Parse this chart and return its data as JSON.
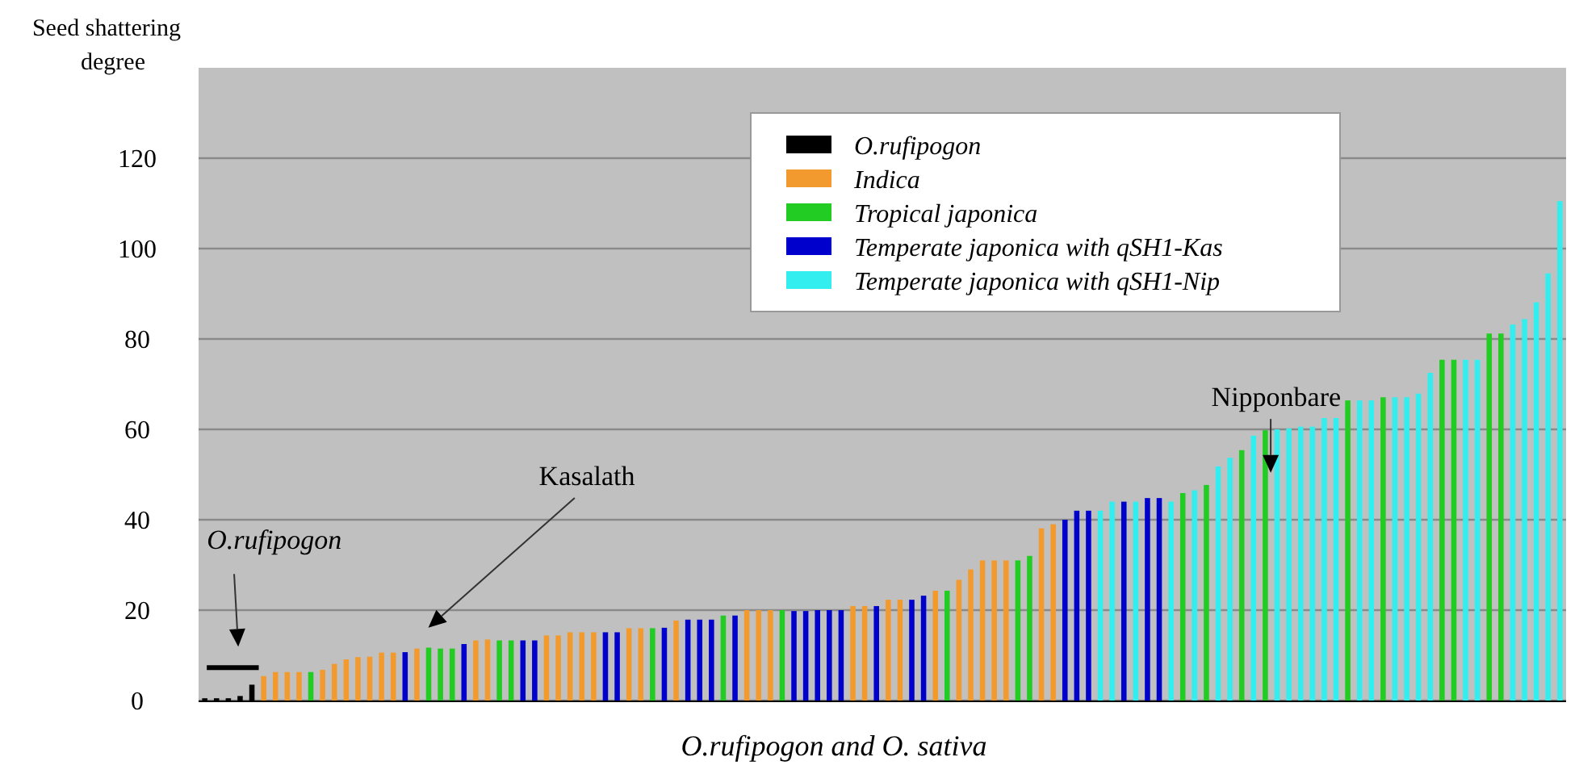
{
  "chart_data": {
    "type": "bar",
    "ylabel": "Seed shattering degree",
    "xlabel": "O.rufipogon and O. sativa",
    "annotations": [
      "O.rufipogon",
      "Kasalath",
      "Nipponbare"
    ],
    "categories": [
      null,
      null,
      null,
      null,
      null,
      null,
      null,
      null,
      null,
      null,
      null,
      null,
      null,
      null,
      null,
      null,
      null,
      null,
      null,
      null,
      null,
      null,
      null,
      null,
      null,
      null,
      null,
      null,
      null,
      null,
      null,
      null,
      null,
      null,
      null,
      null,
      null,
      null,
      null,
      null,
      null,
      null,
      null,
      null,
      null,
      null,
      null,
      null,
      null,
      null,
      null,
      null,
      null,
      null,
      null,
      null,
      null,
      null,
      null,
      null,
      null,
      null,
      null,
      null,
      null,
      null,
      null,
      null,
      null,
      null,
      null,
      null,
      null,
      null,
      null,
      null,
      null,
      null,
      null,
      null,
      null,
      null,
      null,
      null,
      null,
      null,
      null,
      null,
      null,
      null,
      null,
      null,
      null,
      null,
      null,
      null,
      null,
      null,
      null,
      null,
      null,
      null,
      null,
      null,
      null,
      null,
      null,
      null,
      null,
      null,
      null,
      null,
      null,
      null,
      null,
      null
    ],
    "series": [
      {
        "name": "O.rufipogon",
        "color": "#000000",
        "values": [
          0.5,
          0.5,
          0.5,
          1,
          3.5,
          null,
          null,
          null,
          null,
          null,
          null,
          null,
          null,
          null,
          null,
          null,
          null,
          null,
          null,
          null,
          null,
          null,
          null,
          null,
          null,
          null,
          null,
          null,
          null,
          null,
          null,
          null,
          null,
          null,
          null,
          null,
          null,
          null,
          null,
          null,
          null,
          null,
          null,
          null,
          null,
          null,
          null,
          null,
          null,
          null,
          null,
          null,
          null,
          null,
          null,
          null,
          null,
          null,
          null,
          null,
          null,
          null,
          null,
          null,
          null,
          null,
          null,
          null,
          null,
          null,
          null,
          null,
          null,
          null,
          null,
          null,
          null,
          null,
          null,
          null,
          null,
          null,
          null,
          null,
          null,
          null,
          null,
          null,
          null,
          null,
          null,
          null,
          null,
          null,
          null,
          null,
          null,
          null,
          null,
          null,
          null,
          null,
          null,
          null,
          null,
          null,
          null,
          null,
          null,
          null,
          null,
          null,
          null,
          null,
          null,
          null
        ]
      },
      {
        "name": "Indica",
        "color": "#f39a2e",
        "values": [
          null,
          null,
          null,
          null,
          null,
          5.4,
          6.3,
          6.3,
          6.3,
          null,
          6.8,
          8.1,
          9.1,
          9.6,
          9.7,
          10.6,
          10.6,
          null,
          11.5,
          null,
          null,
          null,
          null,
          13.3,
          13.5,
          null,
          null,
          null,
          null,
          14.4,
          14.4,
          15.1,
          15.1,
          15.1,
          null,
          null,
          16,
          16,
          null,
          null,
          17.7,
          null,
          null,
          null,
          null,
          null,
          20,
          20,
          20,
          null,
          null,
          null,
          null,
          null,
          null,
          20.9,
          20.9,
          null,
          22.3,
          22.3,
          null,
          null,
          24.3,
          null,
          26.7,
          29,
          31,
          31,
          31,
          null,
          null,
          38.1,
          39,
          null,
          null,
          null,
          null,
          null,
          null,
          null,
          null,
          null,
          null,
          null,
          null,
          null,
          null,
          null,
          null,
          null,
          null,
          null,
          null,
          null,
          null,
          null,
          null,
          null,
          null,
          null,
          null,
          null,
          null,
          null,
          null,
          null,
          null,
          null,
          null,
          null,
          null,
          null,
          null,
          null,
          null,
          null
        ]
      },
      {
        "name": "Tropical japonica",
        "color": "#22cc22",
        "values": [
          null,
          null,
          null,
          null,
          null,
          null,
          null,
          null,
          null,
          6.3,
          null,
          null,
          null,
          null,
          null,
          null,
          null,
          null,
          null,
          11.7,
          11.5,
          11.5,
          null,
          null,
          null,
          13.3,
          13.3,
          null,
          null,
          null,
          null,
          null,
          null,
          null,
          null,
          null,
          null,
          null,
          16,
          null,
          null,
          null,
          null,
          null,
          18.8,
          null,
          null,
          null,
          null,
          20,
          null,
          null,
          null,
          null,
          null,
          null,
          null,
          null,
          null,
          null,
          null,
          null,
          null,
          24.3,
          null,
          null,
          null,
          null,
          null,
          31,
          32,
          null,
          null,
          null,
          null,
          null,
          null,
          null,
          null,
          null,
          null,
          null,
          null,
          45.9,
          null,
          47.7,
          null,
          null,
          55.4,
          null,
          59.8,
          null,
          null,
          null,
          null,
          null,
          null,
          66.4,
          null,
          null,
          67.1,
          null,
          null,
          null,
          null,
          75.4,
          75.4,
          null,
          null,
          81.2,
          81.2,
          null,
          null,
          null,
          null,
          null
        ]
      },
      {
        "name": "Temperate japonica with qSH1-Kas",
        "color": "#0000cc",
        "values": [
          null,
          null,
          null,
          null,
          null,
          null,
          null,
          null,
          null,
          null,
          null,
          null,
          null,
          null,
          null,
          null,
          null,
          10.7,
          null,
          null,
          null,
          null,
          12.5,
          null,
          null,
          null,
          null,
          13.3,
          13.3,
          null,
          null,
          null,
          null,
          null,
          15.1,
          15.1,
          null,
          null,
          null,
          16.1,
          null,
          17.9,
          17.9,
          17.9,
          null,
          18.8,
          null,
          null,
          null,
          null,
          19.8,
          19.8,
          20,
          20,
          20,
          null,
          null,
          20.9,
          null,
          null,
          22.3,
          23.2,
          null,
          null,
          null,
          null,
          null,
          null,
          null,
          null,
          null,
          null,
          null,
          40,
          42,
          42,
          null,
          null,
          44,
          null,
          44.8,
          44.8,
          null,
          null,
          null,
          null,
          null,
          null,
          null,
          null,
          null,
          null,
          null,
          null,
          null,
          null,
          null,
          null,
          null,
          null,
          null,
          null,
          null,
          null,
          null,
          null,
          null,
          null,
          null,
          null,
          null,
          null,
          null,
          null,
          null,
          null
        ]
      },
      {
        "name": "Temperate japonica with qSH1-Nip",
        "color": "#33eeee",
        "values": [
          null,
          null,
          null,
          null,
          null,
          null,
          null,
          null,
          null,
          null,
          null,
          null,
          null,
          null,
          null,
          null,
          null,
          null,
          null,
          null,
          null,
          null,
          null,
          null,
          null,
          null,
          null,
          null,
          null,
          null,
          null,
          null,
          null,
          null,
          null,
          null,
          null,
          null,
          null,
          null,
          null,
          null,
          null,
          null,
          null,
          null,
          null,
          null,
          null,
          null,
          null,
          null,
          null,
          null,
          null,
          null,
          null,
          null,
          null,
          null,
          null,
          null,
          null,
          null,
          null,
          null,
          null,
          null,
          null,
          null,
          null,
          null,
          null,
          null,
          null,
          null,
          42,
          44,
          null,
          44,
          null,
          null,
          44,
          null,
          46.5,
          null,
          51.8,
          53.7,
          null,
          58.6,
          null,
          60,
          60.2,
          60.6,
          60.6,
          62.5,
          62.5,
          null,
          66.4,
          66.4,
          null,
          67.1,
          67.1,
          67.9,
          72.5,
          null,
          null,
          75.4,
          75.4,
          null,
          null,
          83.2,
          84.4,
          88.1,
          94.5,
          110.5
        ]
      }
    ],
    "ylim": [
      0,
      140
    ],
    "yticks": [
      0,
      20,
      40,
      60,
      80,
      100,
      120
    ],
    "grid": "y",
    "legend": "top right"
  }
}
